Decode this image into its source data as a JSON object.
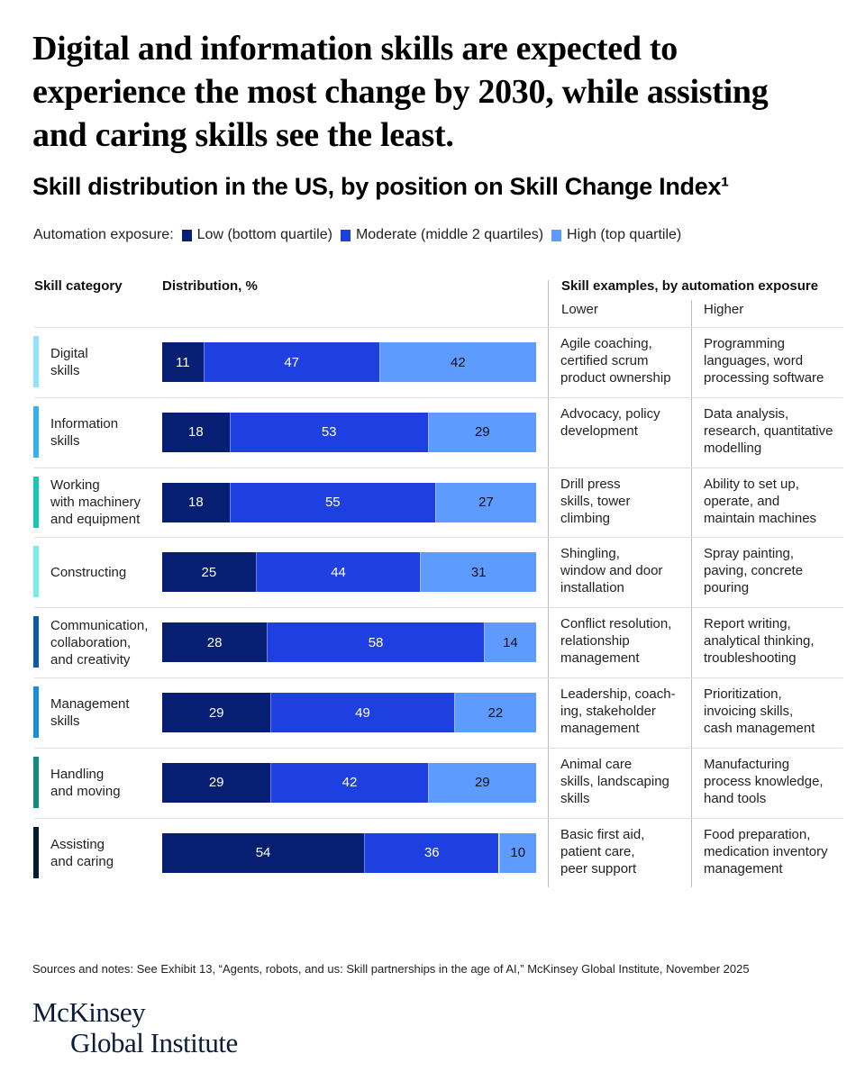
{
  "headline": "Digital and information skills are expected to experience the most change by 2030, while assisting and caring skills see the least.",
  "subtitle": "Skill distribution in the US, by position on Skill Change Index¹",
  "legend": {
    "label": "Automation exposure:",
    "items": [
      {
        "name": "Low (bottom quartile)",
        "color": "#061f73"
      },
      {
        "name": "Moderate (middle 2 quartiles)",
        "color": "#1f40e0"
      },
      {
        "name": "High (top quartile)",
        "color": "#5e9bff"
      }
    ]
  },
  "columns": {
    "category": "Skill category",
    "distribution": "Distribution, %",
    "examples": "Skill examples, by automation exposure",
    "lower": "Lower",
    "higher": "Higher"
  },
  "chart_data": {
    "type": "bar",
    "orientation": "horizontal-stacked-100",
    "title": "Skill distribution in the US, by position on Skill Change Index¹",
    "xlabel": "Distribution, %",
    "ylabel": "Skill category",
    "xlim": [
      0,
      100
    ],
    "grid": false,
    "legend_position": "top-left",
    "categories": [
      "Digital skills",
      "Information skills",
      "Working with machinery and equipment",
      "Constructing",
      "Communication, collaboration, and creativity",
      "Management skills",
      "Handling and moving",
      "Assisting and caring"
    ],
    "series": [
      {
        "name": "Low (bottom quartile)",
        "color": "#061f73",
        "label_color": "#ffffff",
        "values": [
          11,
          18,
          18,
          25,
          28,
          29,
          29,
          54
        ]
      },
      {
        "name": "Moderate (middle 2 quartiles)",
        "color": "#1f40e0",
        "label_color": "#ffffff",
        "values": [
          47,
          53,
          55,
          44,
          58,
          49,
          42,
          36
        ]
      },
      {
        "name": "High (top quartile)",
        "color": "#5e9bff",
        "label_color": "#111111",
        "values": [
          42,
          29,
          27,
          31,
          14,
          22,
          29,
          10
        ]
      }
    ]
  },
  "rows": [
    {
      "label_lines": [
        "Digital",
        "skills"
      ],
      "accent": "#8fe3ff",
      "lower": [
        "Agile coaching,",
        "certified scrum",
        "product ownership"
      ],
      "higher": [
        "Programming",
        "languages, word",
        "processing software"
      ]
    },
    {
      "label_lines": [
        "Information",
        "skills"
      ],
      "accent": "#30b4f5",
      "lower": [
        "Advocacy, policy",
        "development"
      ],
      "higher": [
        "Data analysis,",
        "research, quantitative",
        "modelling"
      ]
    },
    {
      "label_lines": [
        "Working",
        "with machinery",
        "and equipment"
      ],
      "accent": "#14c8b8",
      "lower": [
        "Drill press",
        "skills, tower",
        "climbing"
      ],
      "higher": [
        "Ability to set up,",
        "operate, and",
        "maintain machines"
      ]
    },
    {
      "label_lines": [
        "Constructing"
      ],
      "accent": "#76efe6",
      "lower": [
        "Shingling,",
        "window and door",
        "installation"
      ],
      "higher": [
        "Spray painting,",
        "paving, concrete",
        "pouring"
      ]
    },
    {
      "label_lines": [
        "Communication,",
        "collaboration,",
        "and creativity"
      ],
      "accent": "#0a5aa8",
      "lower": [
        "Conflict resolution,",
        "relationship",
        "management"
      ],
      "higher": [
        "Report writing,",
        "analytical thinking,",
        "troubleshooting"
      ]
    },
    {
      "label_lines": [
        "Management",
        "skills"
      ],
      "accent": "#1590e0",
      "lower": [
        "Leadership, coach-",
        "ing, stakeholder",
        "management"
      ],
      "higher": [
        "Prioritization,",
        "invoicing skills,",
        "cash management"
      ]
    },
    {
      "label_lines": [
        "Handling",
        "and moving"
      ],
      "accent": "#138a80",
      "lower": [
        "Animal care",
        "skills, landscaping",
        "skills"
      ],
      "higher": [
        "Manufacturing",
        "process knowledge,",
        "hand tools"
      ]
    },
    {
      "label_lines": [
        "Assisting",
        "and caring"
      ],
      "accent": "#061a30",
      "lower": [
        "Basic first aid,",
        "patient care,",
        "peer support"
      ],
      "higher": [
        "Food preparation,",
        "medication inventory",
        "management"
      ]
    }
  ],
  "footnote": "Sources and notes: See Exhibit 13, “Agents, robots, and us: Skill partnerships in the age of AI,” McKinsey Global Institute, November 2025",
  "logo": {
    "line1": "McKinsey",
    "line2": "Global Institute"
  }
}
